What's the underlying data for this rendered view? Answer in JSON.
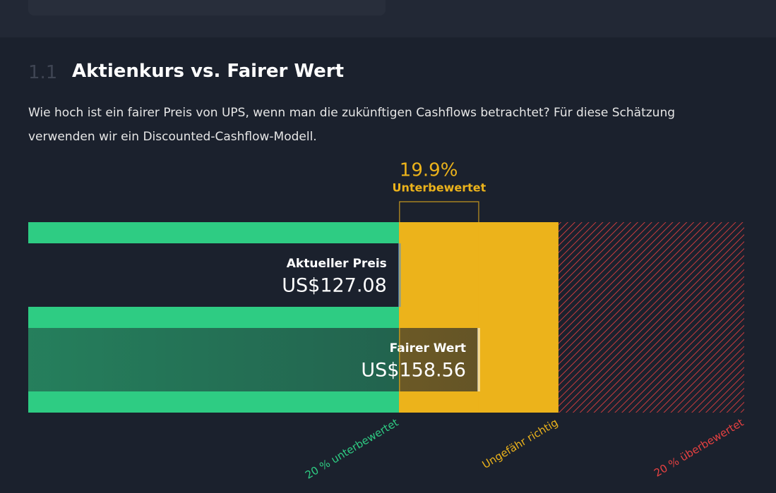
{
  "section": {
    "number": "1.1",
    "title": "Aktienkurs vs. Fairer Wert",
    "text": "Wie hoch ist ein fairer Preis von UPS, wenn man die zukünftigen Cashflows betrachtet? Für diese Schätzung verwenden wir ein Discounted-Cashflow-Modell."
  },
  "chart_data": {
    "type": "bar",
    "orientation": "horizontal",
    "categories": [
      "Aktueller Preis",
      "Fairer Wert"
    ],
    "values": [
      127.08,
      158.56
    ],
    "value_labels": [
      "US$127.08",
      "US$158.56"
    ],
    "xlim": [
      -20.5,
      264.1
    ],
    "zone_edges": [
      126.85,
      190.27
    ],
    "zones": [
      {
        "label": "20 % unterbewertet",
        "color": "#2ecc83"
      },
      {
        "label": "Ungefähr richtig",
        "color": "#ecb31b"
      },
      {
        "label": "20 % überbewertet",
        "color": "#e64141"
      }
    ],
    "difference": {
      "value": 19.9,
      "label": "19.9%",
      "text": "Unterbewertet"
    }
  }
}
